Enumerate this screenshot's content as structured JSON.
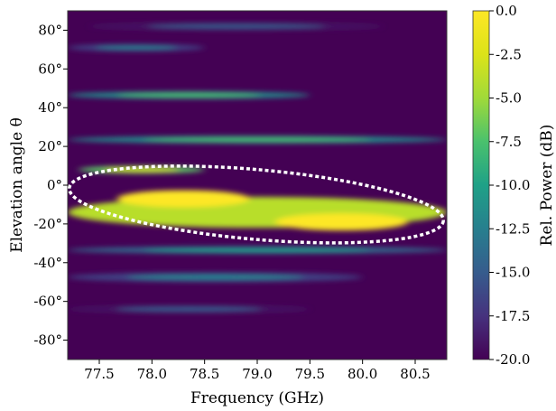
{
  "chart_data": {
    "type": "heatmap",
    "title": "",
    "xlabel": "Frequency (GHz)",
    "ylabel": "Elevation angle θ",
    "xlim": [
      77.2,
      80.8
    ],
    "ylim": [
      -90,
      90
    ],
    "x_ticks": [
      77.5,
      78.0,
      78.5,
      79.0,
      79.5,
      80.0,
      80.5
    ],
    "x_tick_labels": [
      "77.5",
      "78.0",
      "78.5",
      "79.0",
      "79.5",
      "80.0",
      "80.5"
    ],
    "y_ticks": [
      80,
      60,
      40,
      20,
      0,
      -20,
      -40,
      -60,
      -80
    ],
    "y_tick_labels": [
      "80°",
      "60°",
      "40°",
      "20°",
      "0°",
      "-20°",
      "-40°",
      "-60°",
      "-80°"
    ],
    "colorbar": {
      "label": "Rel. Power (dB)",
      "range": [
        -20,
        0
      ],
      "colormap": "viridis",
      "ticks": [
        0,
        -2.5,
        -5,
        -7.5,
        -10,
        -12.5,
        -15,
        -17.5,
        -20
      ],
      "tick_labels": [
        "0.0",
        "-2.5",
        "-5.0",
        "-7.5",
        "-10.0",
        "-12.5",
        "-15.0",
        "-17.5",
        "-20.0"
      ]
    },
    "bands": [
      {
        "elevation": [
          -6,
          -22
        ],
        "freq": [
          77.2,
          80.8
        ],
        "peak_db": 0,
        "peaks_at_ghz": [
          78.3,
          79.8
        ]
      },
      {
        "elevation": [
          10,
          6
        ],
        "freq": [
          77.3,
          78.5
        ],
        "peak_db": -3
      },
      {
        "elevation": [
          25,
          22
        ],
        "freq": [
          77.2,
          80.8
        ],
        "peak_db": -7.5
      },
      {
        "elevation": [
          48,
          45
        ],
        "freq": [
          77.2,
          79.5
        ],
        "peak_db": -7.5
      },
      {
        "elevation": [
          -32,
          -35
        ],
        "freq": [
          77.2,
          80.8
        ],
        "peak_db": -10
      },
      {
        "elevation": [
          -45,
          -50
        ],
        "freq": [
          77.2,
          80.0
        ],
        "peak_db": -12.5
      },
      {
        "elevation": [
          72,
          70
        ],
        "freq": [
          77.2,
          78.5
        ],
        "peak_db": -12.5
      },
      {
        "elevation": [
          -62,
          -66
        ],
        "freq": [
          77.2,
          79.5
        ],
        "peak_db": -15
      },
      {
        "elevation": [
          84,
          80
        ],
        "freq": [
          77.4,
          80.2
        ],
        "peak_db": -15
      }
    ],
    "annotation": {
      "shape": "ellipse",
      "style": "white dotted",
      "freq": [
        77.2,
        80.8
      ],
      "elevation": [
        8,
        -28
      ]
    },
    "grid": false
  }
}
